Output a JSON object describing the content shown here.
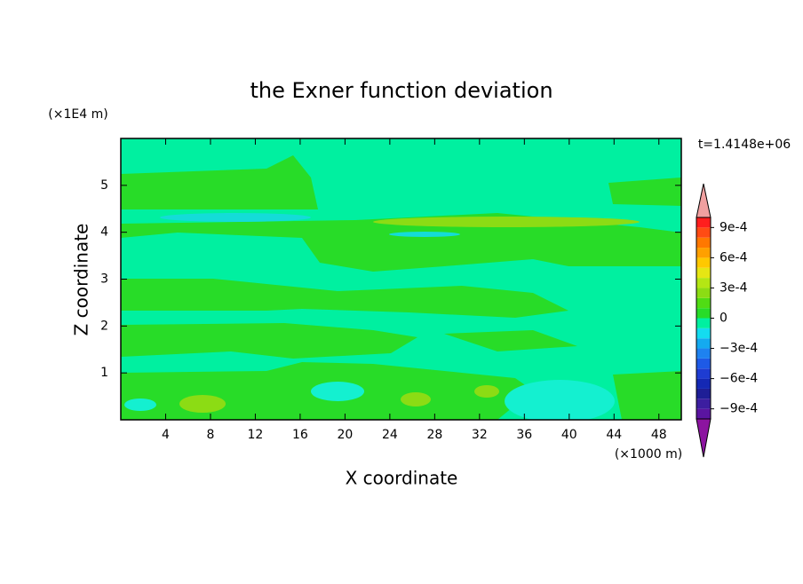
{
  "chart_data": {
    "type": "contour",
    "title": "the Exner function deviation",
    "xlabel": "X coordinate",
    "ylabel": "Z coordinate",
    "x_unit": "(×1000 m)",
    "y_unit": "(×1E4 m)",
    "annotation": "t=1.4148e+06",
    "xlim": [
      0,
      50
    ],
    "xticks": [
      4,
      8,
      12,
      16,
      20,
      24,
      28,
      32,
      36,
      40,
      44,
      48
    ],
    "ylim": [
      0,
      6
    ],
    "yticks": [
      1,
      2,
      3,
      4,
      5
    ],
    "levels": [
      -0.001,
      -0.0009,
      -0.0008,
      -0.0007,
      -0.0006,
      -0.0005,
      -0.0004,
      -0.0003,
      -0.0002,
      -0.0001,
      0,
      0.0001,
      0.0002,
      0.0003,
      0.0004,
      0.0005,
      0.0006,
      0.0007,
      0.0008,
      0.0009,
      0.001
    ],
    "colors": [
      "#5a14a0",
      "#3c1ea0",
      "#1e1e96",
      "#1428b4",
      "#1e3cd2",
      "#1e5ae6",
      "#1e82f0",
      "#14aaf0",
      "#14dcf0",
      "#00f0a0",
      "#28dc28",
      "#50dc14",
      "#8cdc14",
      "#b4e614",
      "#e6e614",
      "#ffc800",
      "#ffa000",
      "#ff7800",
      "#ff4b14",
      "#ff1e1e"
    ],
    "over_color": "#f0a0a0",
    "under_color": "#8c14a0",
    "cbar_ticks": [
      {
        "value": 0.0009,
        "label": "9e-4"
      },
      {
        "value": 0.0006,
        "label": "6e-4"
      },
      {
        "value": 0.0003,
        "label": "3e-4"
      },
      0,
      {
        "value": -0.0003,
        "label": "−3e-4"
      },
      {
        "value": -0.0006,
        "label": "−6e-4"
      },
      {
        "value": -0.0009,
        "label": "−9e-4"
      }
    ]
  }
}
